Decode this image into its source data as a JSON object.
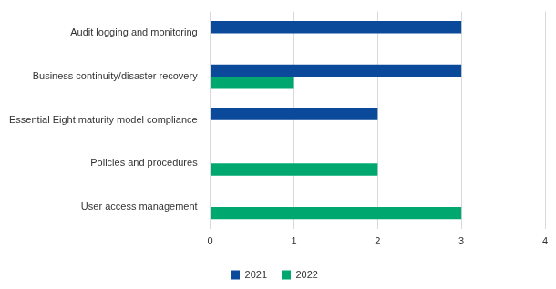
{
  "chart_data": {
    "type": "bar",
    "orientation": "horizontal",
    "categories": [
      "Audit logging and monitoring",
      "Business continuity/disaster recovery",
      "Essential Eight maturity model compliance",
      "Policies and procedures",
      "User access management"
    ],
    "series": [
      {
        "name": "2021",
        "color": "#0b4a9a",
        "values": [
          3,
          3,
          2,
          0,
          0
        ]
      },
      {
        "name": "2022",
        "color": "#00a870",
        "values": [
          0,
          1,
          0,
          2,
          3
        ]
      }
    ],
    "xlim": [
      0,
      4
    ],
    "xticks": [
      0,
      1,
      2,
      3,
      4
    ],
    "grid": true,
    "legend": "bottom"
  }
}
